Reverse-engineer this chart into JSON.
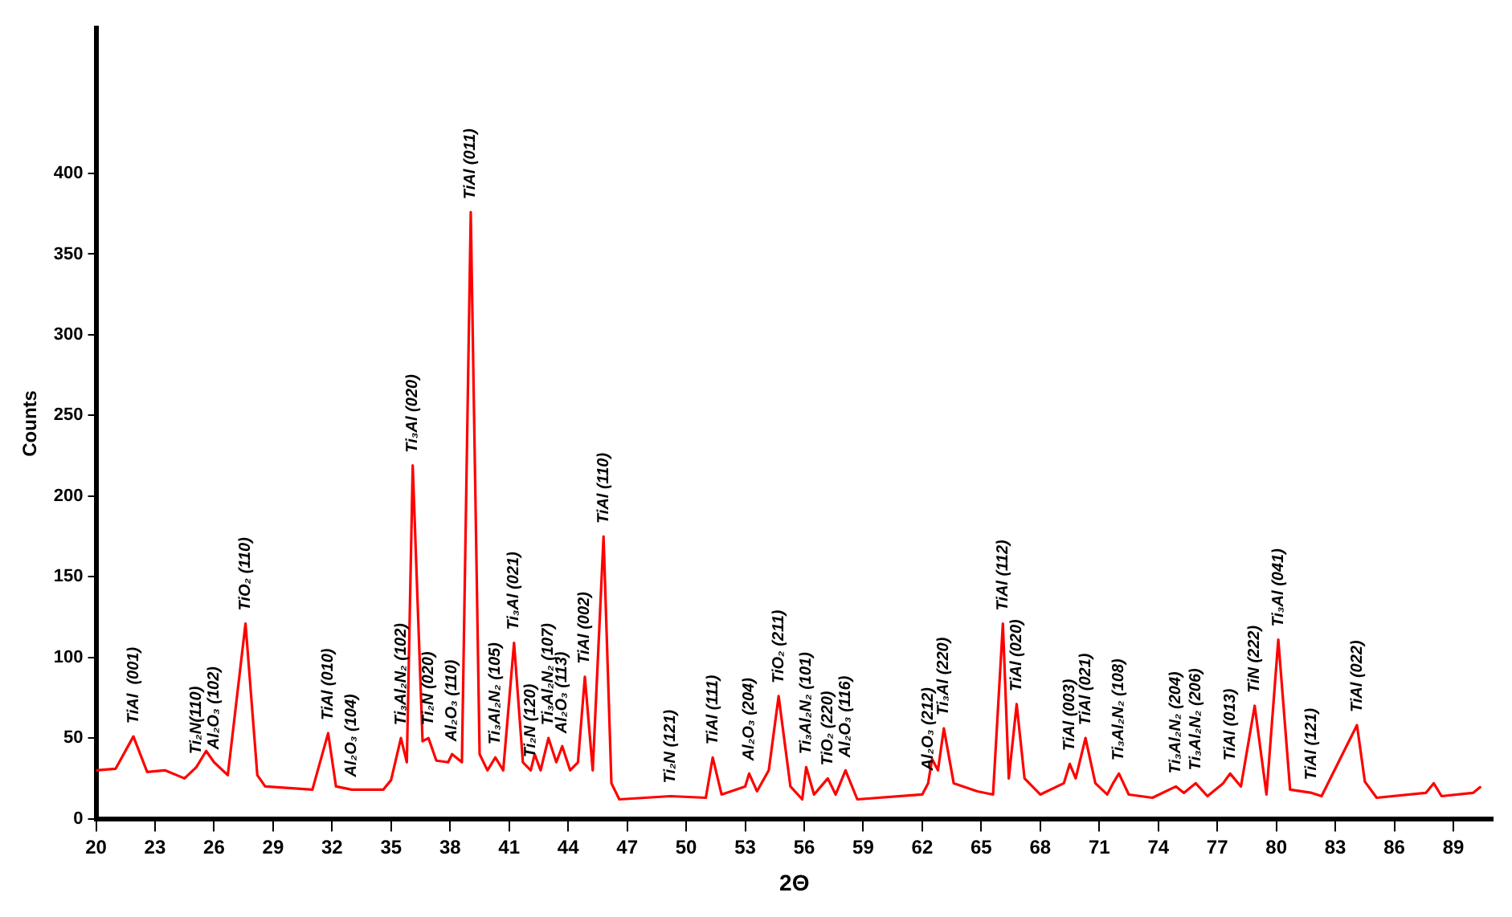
{
  "chart_data": {
    "type": "line",
    "xlabel": "2Θ",
    "ylabel": "Counts",
    "x": [
      20,
      21,
      21.9,
      22.6,
      23.5,
      24.5,
      25.1,
      25.6,
      26.0,
      26.7,
      27.6,
      28.2,
      28.6,
      31.0,
      31.8,
      32.2,
      33.0,
      34.6,
      35.0,
      35.5,
      35.8,
      36.1,
      36.6,
      36.9,
      37.3,
      37.9,
      38.1,
      38.6,
      39.05,
      39.5,
      39.9,
      40.3,
      40.7,
      41.25,
      41.7,
      42.1,
      42.3,
      42.6,
      43.0,
      43.4,
      43.7,
      44.1,
      44.5,
      44.85,
      45.25,
      45.8,
      46.2,
      46.6,
      49.2,
      51.0,
      51.35,
      51.8,
      53.0,
      53.2,
      53.6,
      54.2,
      54.7,
      55.3,
      55.9,
      56.1,
      56.5,
      57.2,
      57.6,
      58.1,
      58.7,
      62.0,
      62.3,
      62.5,
      62.8,
      63.1,
      63.6,
      64.8,
      65.6,
      66.1,
      66.4,
      66.8,
      67.2,
      68.0,
      69.2,
      69.5,
      69.8,
      70.3,
      70.8,
      71.4,
      71.7,
      72.0,
      72.5,
      73.7,
      74.9,
      75.3,
      75.9,
      76.5,
      77.3,
      77.65,
      78.2,
      78.9,
      79.5,
      80.1,
      80.7,
      81.8,
      82.3,
      84.1,
      84.5,
      85.1,
      87.6,
      88.0,
      88.4,
      90.0,
      90.4
    ],
    "values": [
      30,
      31,
      51,
      29,
      30,
      25,
      32,
      42,
      35,
      27,
      121,
      27,
      20,
      18,
      53,
      20,
      18,
      18,
      24,
      50,
      35,
      219,
      48,
      50,
      36,
      35,
      40,
      35,
      376,
      40,
      30,
      38,
      30,
      109,
      35,
      30,
      40,
      30,
      50,
      35,
      45,
      30,
      35,
      88,
      30,
      175,
      22,
      12,
      14,
      13,
      38,
      15,
      20,
      28,
      17,
      30,
      76,
      20,
      12,
      32,
      15,
      25,
      15,
      30,
      12,
      15,
      22,
      37,
      30,
      56,
      22,
      17,
      15,
      121,
      25,
      71,
      25,
      15,
      22,
      34,
      25,
      50,
      22,
      15,
      22,
      28,
      15,
      13,
      20,
      16,
      22,
      14,
      22,
      28,
      20,
      70,
      15,
      111,
      18,
      16,
      14,
      58,
      23,
      13,
      16,
      22,
      14,
      16,
      20
    ],
    "color": "#ff0000",
    "xlim": [
      20,
      91
    ],
    "ylim": [
      0,
      490
    ],
    "xticks": [
      20,
      23,
      26,
      29,
      32,
      35,
      38,
      41,
      44,
      47,
      50,
      53,
      56,
      59,
      62,
      65,
      68,
      71,
      74,
      77,
      80,
      83,
      86,
      89
    ],
    "yticks": [
      0,
      50,
      100,
      150,
      200,
      250,
      300,
      350,
      400
    ],
    "grid": false,
    "legend": false,
    "marker": "none",
    "line_style": "solid",
    "annotations": [
      {
        "text": "TiAl  (001)",
        "x": 21.9,
        "y": 51
      },
      {
        "text": "Ti₂N(110)",
        "x": 25.1,
        "y": 32
      },
      {
        "text": "Al₂O₃ (102)",
        "x": 26.0,
        "y": 35
      },
      {
        "text": "TiO₂ (110)",
        "x": 27.6,
        "y": 121
      },
      {
        "text": "TiAl (010)",
        "x": 31.8,
        "y": 53
      },
      {
        "text": "Al₂O₃ (104)",
        "x": 33.0,
        "y": 18
      },
      {
        "text": "Ti₃Al₂N₂ (102)",
        "x": 35.5,
        "y": 50
      },
      {
        "text": "Ti₃Al (020)",
        "x": 36.1,
        "y": 219
      },
      {
        "text": "Ti₂N (020)",
        "x": 36.9,
        "y": 50
      },
      {
        "text": "Al₂O₃ (110)",
        "x": 38.1,
        "y": 40
      },
      {
        "text": "TiAl (011)",
        "x": 39.05,
        "y": 376
      },
      {
        "text": "Ti₃Al₂N₂ (105)",
        "x": 40.3,
        "y": 38
      },
      {
        "text": "Ti₃Al (021)",
        "x": 41.25,
        "y": 109
      },
      {
        "text": "Ti₂N (120)",
        "x": 42.1,
        "y": 30
      },
      {
        "text": "Ti₃Al₂N₂ (107)",
        "x": 43.0,
        "y": 50
      },
      {
        "text": "Al₂O₃ (113)",
        "x": 43.7,
        "y": 45
      },
      {
        "text": "TiAl (002)",
        "x": 44.85,
        "y": 88
      },
      {
        "text": "TiAl (110)",
        "x": 45.8,
        "y": 175
      },
      {
        "text": "Ti₂N (121)",
        "x": 49.2,
        "y": 14
      },
      {
        "text": "TiAl (111)",
        "x": 51.35,
        "y": 38
      },
      {
        "text": "Al₂O₃ (204)",
        "x": 53.2,
        "y": 28
      },
      {
        "text": "TiO₂ (211)",
        "x": 54.7,
        "y": 76
      },
      {
        "text": "Ti₃Al₂N₂ (101)",
        "x": 56.1,
        "y": 32
      },
      {
        "text": "TiO₂ (220)",
        "x": 57.2,
        "y": 25
      },
      {
        "text": "Al₂O₃ (116)",
        "x": 58.1,
        "y": 30
      },
      {
        "text": "Al₂O₃ (212)",
        "x": 62.3,
        "y": 22
      },
      {
        "text": "Ti₃Al (220)",
        "x": 63.1,
        "y": 56
      },
      {
        "text": "TiAl (112)",
        "x": 66.1,
        "y": 121
      },
      {
        "text": "TiAl (020)",
        "x": 66.8,
        "y": 71
      },
      {
        "text": "TiAl (003)",
        "x": 69.5,
        "y": 34
      },
      {
        "text": "TiAl (021)",
        "x": 70.3,
        "y": 50
      },
      {
        "text": "Ti₃Al₂N₂ (108)",
        "x": 72.0,
        "y": 28
      },
      {
        "text": "Ti₃Al₂N₂ (204)",
        "x": 74.9,
        "y": 20
      },
      {
        "text": "Ti₃Al₂N₂ (206)",
        "x": 75.9,
        "y": 22
      },
      {
        "text": "TiAl (013)",
        "x": 77.65,
        "y": 28
      },
      {
        "text": "TiN (222)",
        "x": 78.9,
        "y": 70
      },
      {
        "text": "Ti₃Al (041)",
        "x": 80.1,
        "y": 111
      },
      {
        "text": "TiAl (121)",
        "x": 81.8,
        "y": 16
      },
      {
        "text": "TiAl (022)",
        "x": 84.1,
        "y": 58
      }
    ]
  }
}
